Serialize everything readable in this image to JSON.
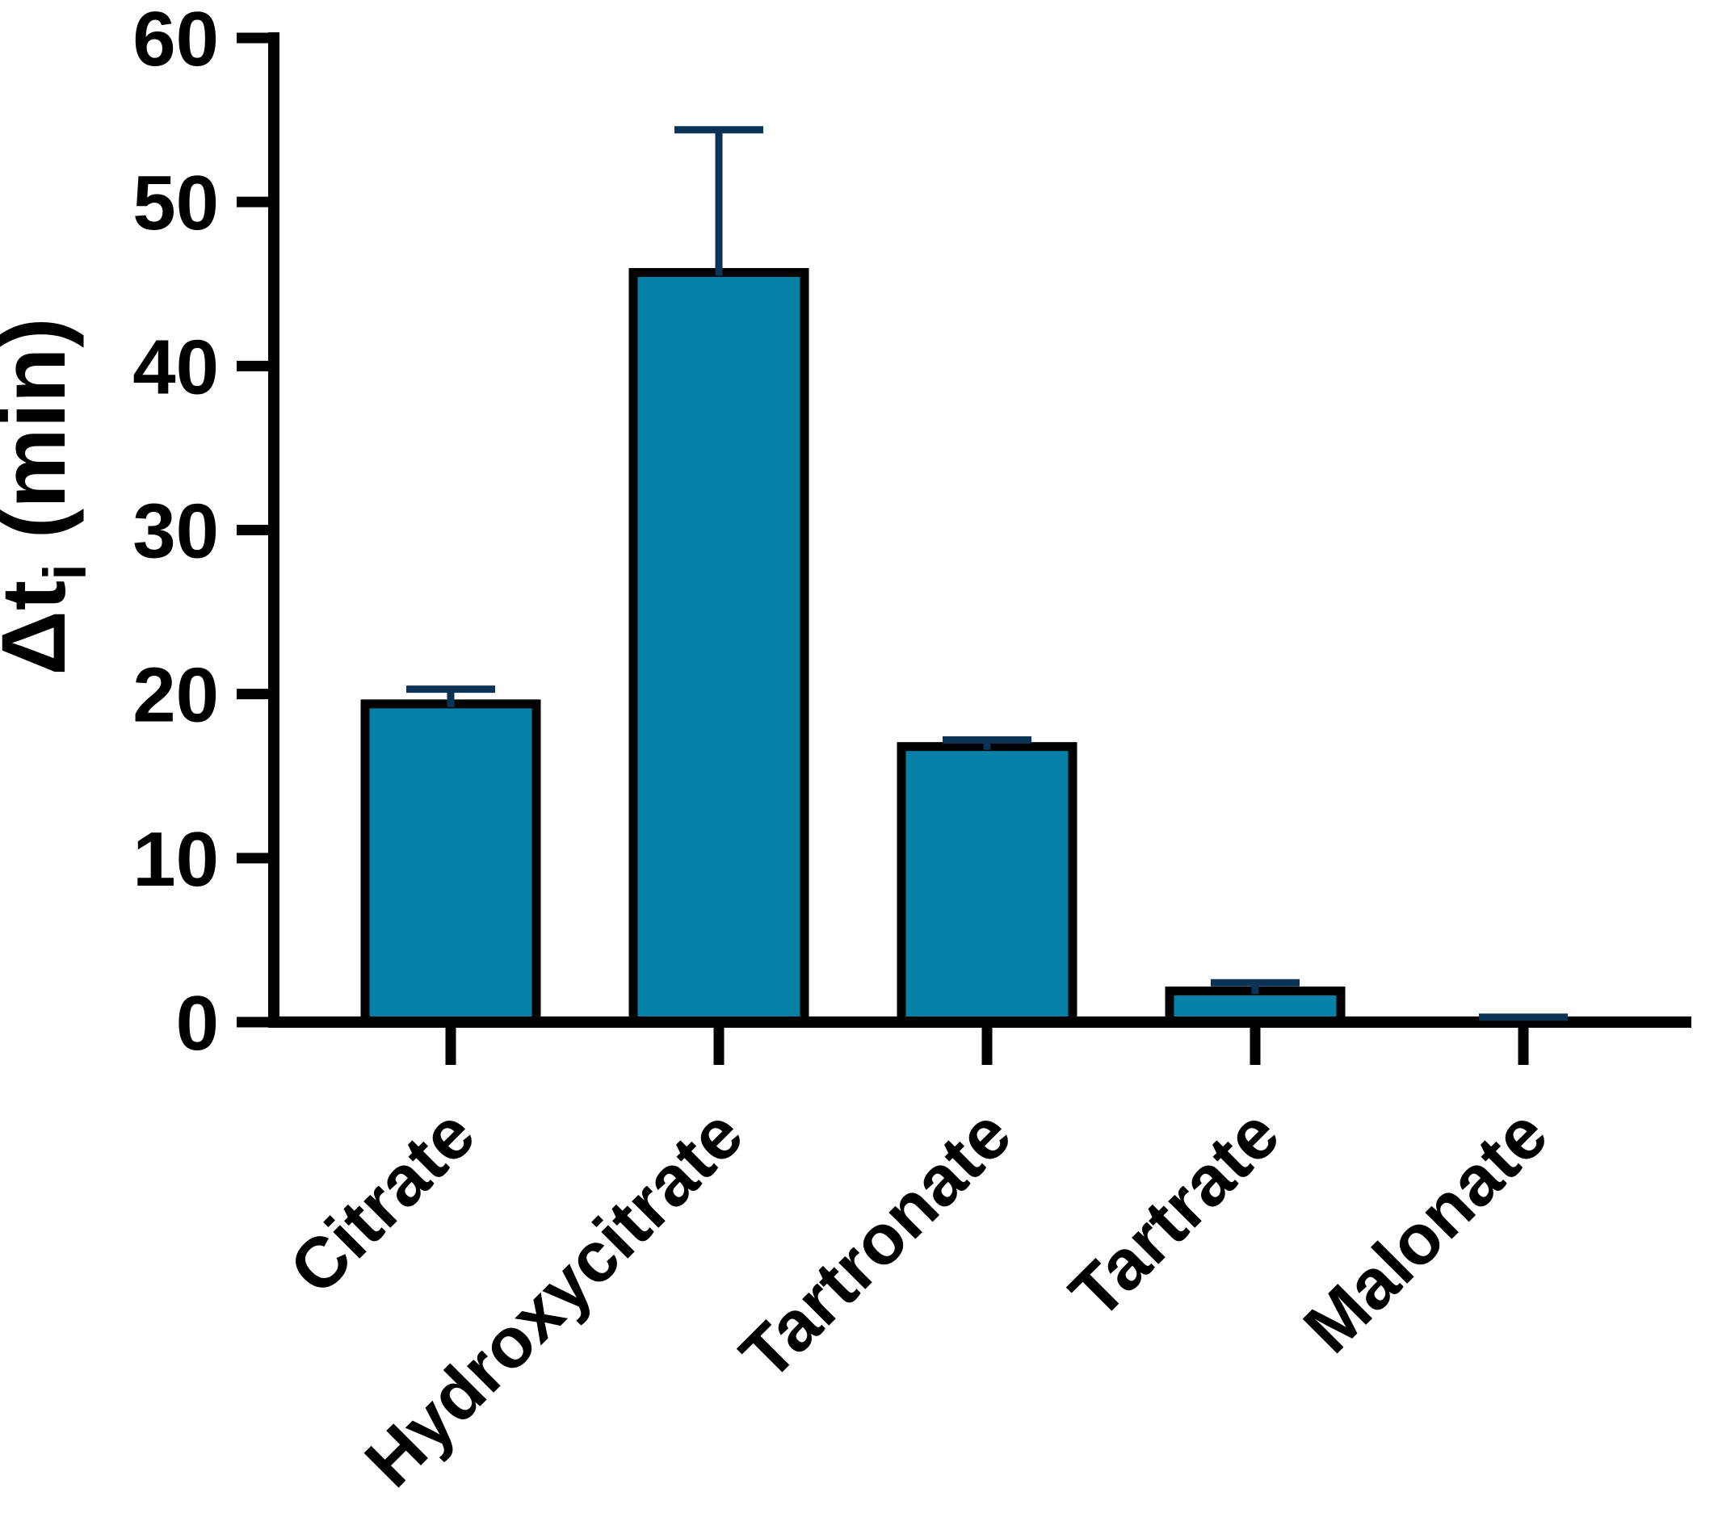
{
  "chart_data": {
    "type": "bar",
    "title": "",
    "xlabel": "",
    "ylabel": "Δtᵢ (min)",
    "ylabel_parts": {
      "prefix": "Δt",
      "subscript": "i",
      "suffix": " (min)"
    },
    "categories": [
      "Citrate",
      "Hydroxycitrate",
      "Tartronate",
      "Tartrate",
      "Malonate"
    ],
    "series": [
      {
        "name": "Δti (min)",
        "values": [
          19.4,
          45.7,
          16.8,
          1.9,
          0
        ],
        "errors_plus": [
          0.9,
          8.7,
          0.4,
          0.5,
          0.3
        ]
      }
    ],
    "yticks": [
      0,
      10,
      20,
      30,
      40,
      50,
      60
    ],
    "ylim": [
      0,
      60
    ],
    "grid": false,
    "legend_position": "none",
    "bar_orientation": "vertical",
    "error_bars": "plus-only-with-caps",
    "x_tick_label_rotation_deg": -45,
    "colors": {
      "bar_fill": "#0580A7",
      "bar_edge": "#000000",
      "error_bar": "#0B3355",
      "axis": "#000000",
      "text": "#000000",
      "background": "#FFFFFF"
    }
  }
}
